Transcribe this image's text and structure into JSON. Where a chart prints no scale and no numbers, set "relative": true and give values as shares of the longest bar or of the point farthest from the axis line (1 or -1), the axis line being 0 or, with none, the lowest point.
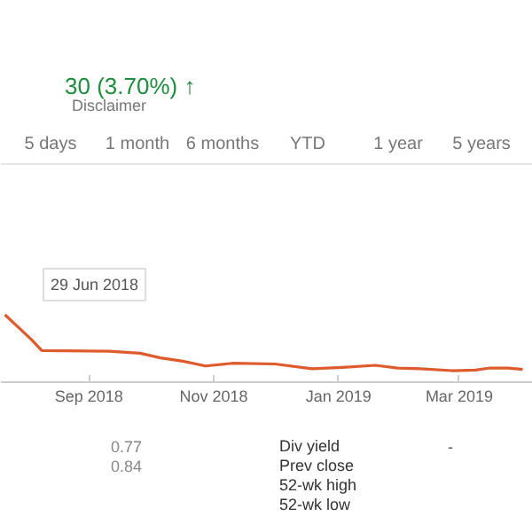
{
  "chart_data": {
    "type": "line",
    "relative": true,
    "color": "#dd5b2c",
    "x": [
      "2018-07-22",
      "2018-08-04",
      "2018-08-09",
      "2018-09-11",
      "2018-09-26",
      "2018-10-06",
      "2018-10-17",
      "2018-10-28",
      "2018-11-10",
      "2018-12-01",
      "2018-12-19",
      "2019-01-03",
      "2019-01-19",
      "2019-01-30",
      "2019-02-10",
      "2019-02-26",
      "2019-03-09",
      "2019-03-16",
      "2019-03-25",
      "2019-04-01"
    ],
    "values": [
      1.0,
      0.63,
      0.47,
      0.46,
      0.43,
      0.36,
      0.31,
      0.24,
      0.28,
      0.27,
      0.2,
      0.22,
      0.25,
      0.21,
      0.2,
      0.17,
      0.18,
      0.21,
      0.21,
      0.19
    ],
    "xlim": [
      "2018-07-20",
      "2019-04-06"
    ],
    "xticks": [
      {
        "value": "2018-09-01",
        "label": "Sep 2018"
      },
      {
        "value": "2018-11-01",
        "label": "Nov 2018"
      },
      {
        "value": "2019-01-01",
        "label": "Jan 2019"
      },
      {
        "value": "2019-03-01",
        "label": "Mar 2019"
      }
    ],
    "annotations": [
      "30 (3.70%) ↑",
      "Disclaimer",
      "5 days",
      "1 month",
      "6 months",
      "YTD",
      "1 year",
      "5 years",
      "29 Jun 2018",
      "0.77",
      "0.84",
      "Div yield",
      "Prev close",
      "52-wk high",
      "52-wk low",
      "-"
    ]
  }
}
